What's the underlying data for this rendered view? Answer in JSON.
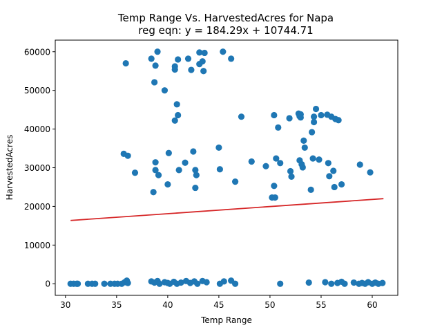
{
  "chart_data": {
    "type": "scatter",
    "title": "Temp Range Vs. HarvestedAcres for Napa",
    "subtitle": "reg eqn: y = 184.29x + 10744.71",
    "xlabel": "Temp Range",
    "ylabel": "HarvestedAcres",
    "xlim": [
      29,
      62.5
    ],
    "ylim": [
      -3000,
      63000
    ],
    "x_ticks": [
      30,
      35,
      40,
      45,
      50,
      55,
      60
    ],
    "y_ticks": [
      0,
      10000,
      20000,
      30000,
      40000,
      50000,
      60000
    ],
    "grid": false,
    "legend": "none",
    "point_color": "#1f77b4",
    "line_color": "#d62728",
    "regression": {
      "slope": 184.29,
      "intercept": 10744.71,
      "x_range": [
        30.5,
        61.1
      ]
    },
    "points": {
      "x": [
        35.9,
        38.4,
        38.8,
        39.0,
        39.7,
        40.7,
        40.7,
        41.0,
        42.0,
        42.3,
        43.1,
        43.4,
        43.6,
        45.4,
        46.2,
        43.5,
        43.1,
        38.7,
        40.7,
        40.9,
        41.0,
        47.2,
        50.4,
        50.8,
        51.9,
        52.8,
        52.9,
        53.0,
        53.0,
        53.3,
        54.3,
        54.5,
        55.0,
        55.6,
        56.0,
        56.4,
        56.7,
        54.3,
        54.1,
        35.7,
        36.1,
        36.8,
        38.6,
        38.8,
        38.8,
        39.1,
        40.0,
        40.1,
        41.1,
        41.7,
        42.5,
        42.7,
        42.8,
        42.7,
        45.0,
        45.1,
        46.6,
        48.2,
        49.6,
        50.2,
        50.4,
        50.5,
        50.6,
        51.0,
        52.0,
        52.1,
        52.9,
        53.1,
        53.2,
        53.4,
        54.0,
        54.2,
        54.8,
        55.7,
        55.8,
        56.2,
        56.3,
        57.0,
        58.8,
        59.8,
        30.5,
        30.8,
        31.1,
        31.2,
        32.2,
        32.6,
        32.9,
        33.8,
        34.4,
        34.8,
        35.1,
        35.5,
        35.8,
        36.0,
        36.1,
        38.4,
        38.7,
        39.0,
        39.2,
        39.7,
        40.0,
        40.2,
        40.6,
        40.9,
        41.3,
        41.8,
        42.2,
        42.6,
        42.9,
        43.4,
        43.8,
        45.1,
        45.5,
        46.2,
        46.6,
        51.0,
        53.8,
        55.4,
        56.0,
        56.6,
        57.0,
        57.3,
        58.2,
        58.7,
        59.0,
        59.3,
        59.6,
        60.0,
        60.3,
        60.6,
        61.0
      ],
      "y": [
        57000,
        58200,
        56400,
        60000,
        50000,
        55400,
        56200,
        58000,
        58200,
        55300,
        59800,
        57500,
        59700,
        60000,
        58200,
        55000,
        56800,
        52100,
        42200,
        46400,
        43600,
        43200,
        43600,
        40400,
        42800,
        44000,
        43300,
        43800,
        43000,
        37000,
        43200,
        45200,
        43600,
        43700,
        43200,
        42600,
        42300,
        41800,
        39200,
        33600,
        33100,
        28700,
        23700,
        31400,
        29400,
        28100,
        25700,
        33800,
        29400,
        31300,
        34200,
        29400,
        28100,
        24800,
        35200,
        29600,
        26400,
        31600,
        30400,
        22300,
        25300,
        22300,
        32400,
        31200,
        29100,
        27700,
        31900,
        30900,
        30100,
        35200,
        24300,
        32400,
        32100,
        31200,
        27800,
        29200,
        25000,
        25700,
        30800,
        28800,
        0,
        0,
        0,
        0,
        0,
        0,
        0,
        0,
        0,
        0,
        0,
        0,
        400,
        800,
        200,
        600,
        300,
        700,
        0,
        400,
        200,
        0,
        500,
        0,
        300,
        700,
        200,
        600,
        0,
        700,
        400,
        0,
        600,
        800,
        0,
        0,
        300,
        400,
        0,
        200,
        500,
        0,
        300,
        0,
        200,
        0,
        400,
        0,
        300,
        0,
        200
      ]
    }
  }
}
